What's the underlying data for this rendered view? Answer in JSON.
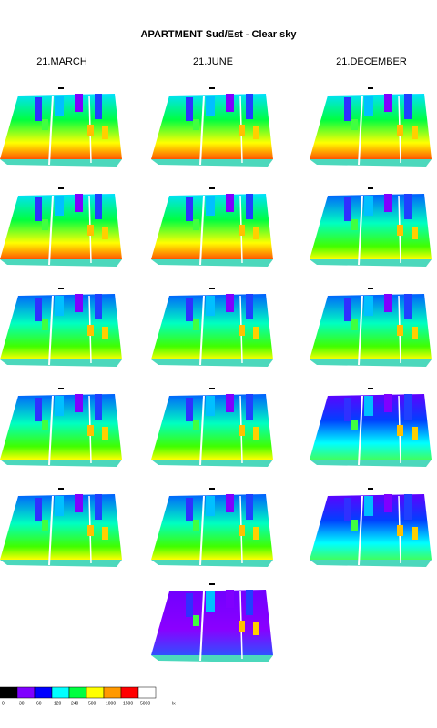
{
  "header": {
    "title": "APARTMENT Sud/Est - Clear sky",
    "columns": [
      "21.MARCH",
      "21.JUNE",
      "21.DECEMBER"
    ]
  },
  "legend": {
    "items": [
      {
        "label": "0",
        "color": "#000000"
      },
      {
        "label": "30",
        "color": "#7f00ff"
      },
      {
        "label": "60",
        "color": "#0000ff"
      },
      {
        "label": "120",
        "color": "#00ffff"
      },
      {
        "label": "240",
        "color": "#00ff40"
      },
      {
        "label": "500",
        "color": "#ffff00"
      },
      {
        "label": "1000",
        "color": "#ff9900"
      },
      {
        "label": "1500",
        "color": "#ff0000"
      },
      {
        "label": "5000",
        "color": "#ffffff"
      }
    ],
    "unit": "lx"
  }
}
